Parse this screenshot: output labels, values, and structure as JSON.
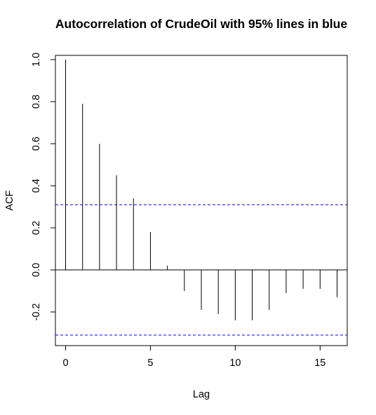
{
  "chart_data": {
    "type": "bar",
    "subtype": "acf",
    "title": "Autocorrelation of CrudeOil with 95% lines in blue",
    "xlabel": "Lag",
    "ylabel": "ACF",
    "xlim": [
      -0.6,
      16.6
    ],
    "ylim": [
      -0.36,
      1.02
    ],
    "x_ticks": [
      "0",
      "5",
      "10",
      "15"
    ],
    "y_ticks": [
      "-0.2",
      "0.0",
      "0.2",
      "0.4",
      "0.6",
      "0.8",
      "1.0"
    ],
    "lags": [
      0,
      1,
      2,
      3,
      4,
      5,
      6,
      7,
      8,
      9,
      10,
      11,
      12,
      13,
      14,
      15,
      16
    ],
    "values": [
      1.0,
      0.79,
      0.6,
      0.45,
      0.34,
      0.18,
      0.02,
      -0.1,
      -0.19,
      -0.21,
      -0.24,
      -0.24,
      -0.19,
      -0.11,
      -0.09,
      -0.09,
      -0.13
    ],
    "confidence_bounds": [
      0.31,
      -0.31
    ],
    "confidence_line_color": "#0000ff",
    "zero_line": true,
    "grid": false
  }
}
